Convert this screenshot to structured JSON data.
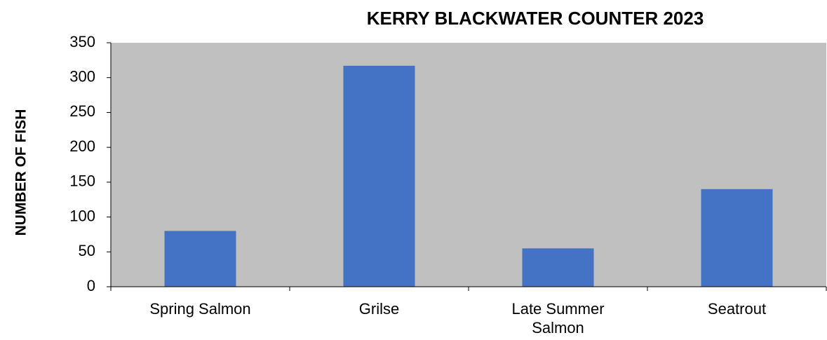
{
  "chart_data": {
    "type": "bar",
    "title": "KERRY BLACKWATER COUNTER 2023",
    "y_label": "NUMBER OF FISH",
    "categories": [
      "Spring Salmon",
      "Grilse",
      "Late Summer Salmon",
      "Seatrout"
    ],
    "values": [
      80,
      317,
      55,
      140
    ],
    "color": "#4472c4",
    "ylim": [
      0,
      350
    ],
    "yticks": [
      0,
      50,
      100,
      150,
      200,
      250,
      300,
      350
    ],
    "plot_background": "#c0c0c0"
  }
}
